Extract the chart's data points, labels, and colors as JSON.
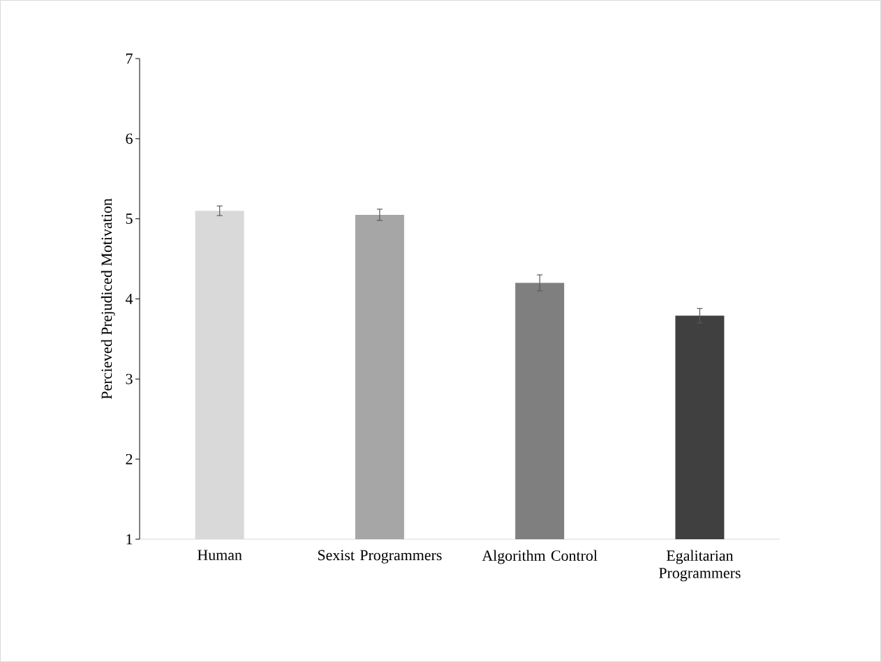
{
  "chart_data": {
    "type": "bar",
    "ylabel": "Percieved Prejudiced Motivation",
    "categories": [
      "Human",
      "Sexist Programmers",
      "Algorithm Control",
      "Egalitarian Programmers"
    ],
    "values": [
      5.1,
      5.05,
      4.2,
      3.79
    ],
    "errors": [
      0.06,
      0.07,
      0.1,
      0.09
    ],
    "colors": [
      "#d9d9d9",
      "#a6a6a6",
      "#7f7f7f",
      "#404040"
    ],
    "ylim": [
      1,
      7
    ],
    "yticks": [
      1,
      2,
      3,
      4,
      5,
      6,
      7
    ]
  }
}
